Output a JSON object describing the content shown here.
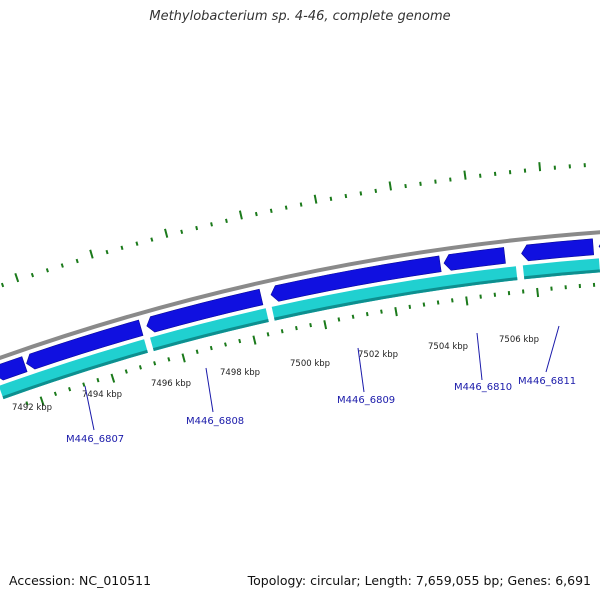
{
  "title": "Methylobacterium sp. 4-46, complete genome",
  "footer": {
    "accession": "Accession: NC_010511",
    "summary": "Topology: circular; Length: 7,659,055 bp; Genes: 6,691"
  },
  "colors": {
    "backbone": "#8a8a8a",
    "forward_genes": "#1010e0",
    "reverse_track": "#20d0d0",
    "reverse_track_edge": "#0e8f8f",
    "ticks": "#1b7a1b",
    "gene_label": "#1a1aaa"
  },
  "scale_labels": [
    "7492 kbp",
    "7494 kbp",
    "7496 kbp",
    "7498 kbp",
    "7500 kbp",
    "7502 kbp",
    "7504 kbp",
    "7506 kbp"
  ],
  "genes": [
    {
      "label": "M446_6807"
    },
    {
      "label": "M446_6808"
    },
    {
      "label": "M446_6809"
    },
    {
      "label": "M446_6810"
    },
    {
      "label": "M446_6811"
    }
  ]
}
